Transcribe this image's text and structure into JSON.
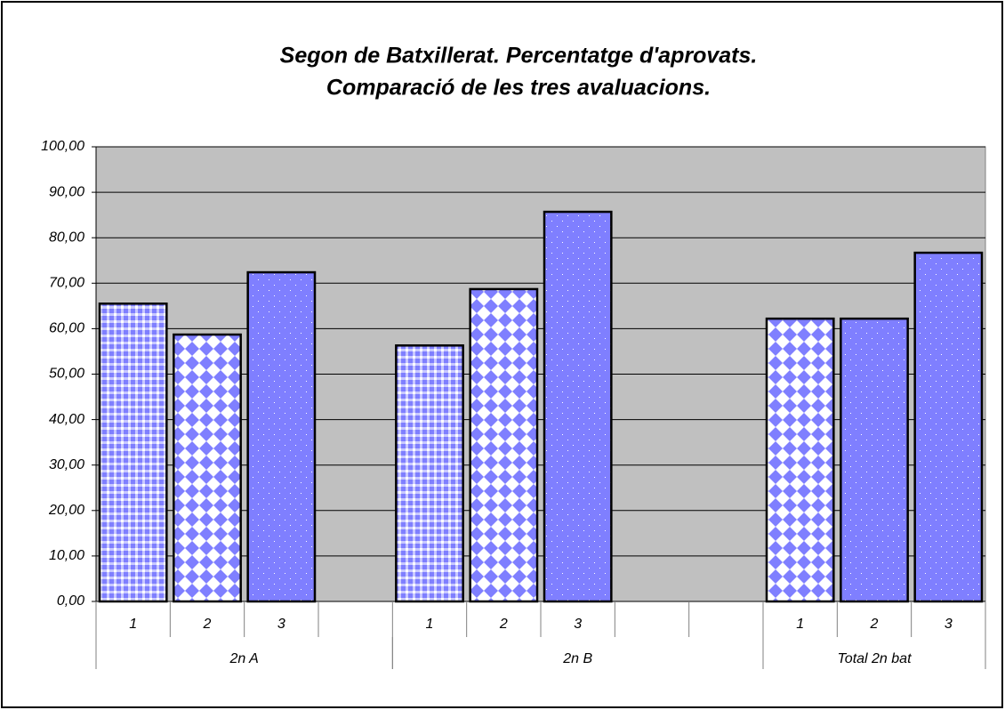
{
  "chart_data": {
    "type": "bar",
    "title": [
      "Segon de Batxillerat. Percentatge d'aprovats.",
      "Comparació de les tres avaluacions."
    ],
    "categories": [
      "1",
      "2",
      "3",
      null,
      "1",
      "2",
      "3",
      null,
      null,
      "1",
      "2",
      "3"
    ],
    "groups": [
      {
        "label": "2n A",
        "count": 4
      },
      {
        "label": "2n B",
        "count": 5
      },
      {
        "label": "Total 2n bat",
        "count": 3
      }
    ],
    "values": [
      65.5,
      58.7,
      72.4,
      null,
      56.3,
      68.7,
      85.7,
      null,
      null,
      62.2,
      62.2,
      76.7
    ],
    "patterns": [
      "plaid",
      "diamond",
      "dots",
      null,
      "plaid",
      "diamond",
      "dots",
      null,
      null,
      "diamond",
      "dots",
      "dots"
    ],
    "color": "#7f7fff",
    "ylim": [
      0,
      100
    ],
    "yticks": [
      {
        "value": 0,
        "label": "0,00"
      },
      {
        "value": 10,
        "label": "10,00"
      },
      {
        "value": 20,
        "label": "20,00"
      },
      {
        "value": 30,
        "label": "30,00"
      },
      {
        "value": 40,
        "label": "40,00"
      },
      {
        "value": 50,
        "label": "50,00"
      },
      {
        "value": 60,
        "label": "60,00"
      },
      {
        "value": 70,
        "label": "70,00"
      },
      {
        "value": 80,
        "label": "80,00"
      },
      {
        "value": 90,
        "label": "90,00"
      },
      {
        "value": 100,
        "label": "100,00"
      }
    ],
    "grid": true
  }
}
